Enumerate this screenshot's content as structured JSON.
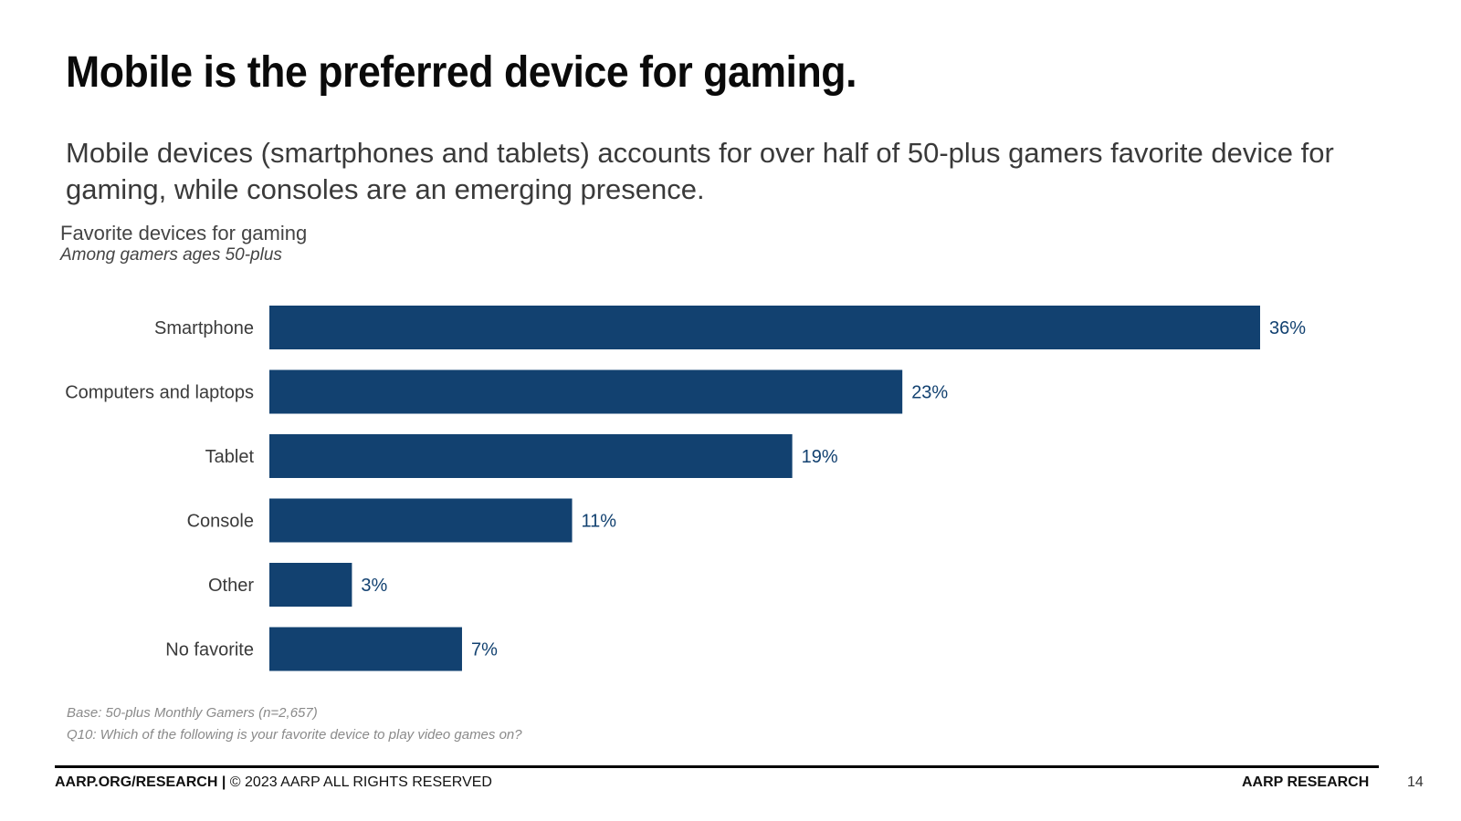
{
  "slide": {
    "title": "Mobile is the preferred device for gaming.",
    "subtitle": "Mobile devices (smartphones and tablets) accounts for over half of 50-plus gamers favorite device for gaming, while consoles are an emerging presence."
  },
  "chart_data": {
    "type": "bar",
    "orientation": "horizontal",
    "title": "Favorite devices for gaming",
    "subtitle": "Among gamers ages 50-plus",
    "categories": [
      "Smartphone",
      "Computers and laptops",
      "Tablet",
      "Console",
      "Other",
      "No favorite"
    ],
    "values": [
      36,
      23,
      19,
      11,
      3,
      7
    ],
    "value_labels": [
      "36%",
      "23%",
      "19%",
      "11%",
      "3%",
      "7%"
    ],
    "unit": "%",
    "xlim": [
      0,
      36
    ],
    "grid": false,
    "bar_color": "#124170",
    "label_color": "#124170"
  },
  "notes": {
    "base": "Base: 50-plus Monthly Gamers (n=2,657)",
    "question": "Q10: Which of the following is your favorite device to play video games on?"
  },
  "footer": {
    "site": "AARP.ORG/RESEARCH",
    "separator": " | ",
    "copyright": "© 2023 AARP ALL RIGHTS RESERVED",
    "brand": "AARP RESEARCH",
    "page_number": "14"
  }
}
